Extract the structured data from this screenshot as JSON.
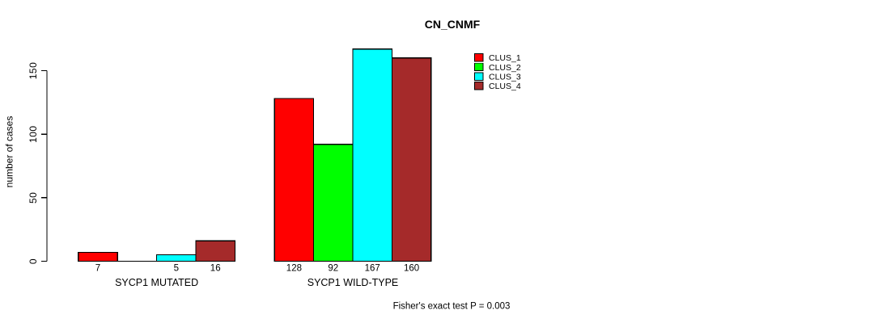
{
  "figure": {
    "title": "CN_CNMF",
    "footer": "Fisher's exact test P = 0.003"
  },
  "chart_data": {
    "type": "bar",
    "title": "CN_CNMF",
    "xlabel": "",
    "ylabel": "number of cases",
    "ylim": [
      0,
      175
    ],
    "yticks": [
      0,
      50,
      100,
      150
    ],
    "ytick_labels": [
      "0",
      "50",
      "100",
      "150"
    ],
    "grid": false,
    "legend_position": "top-right",
    "bar_outline_color": "#000000",
    "categories": [
      "SYCP1 MUTATED",
      "SYCP1 WILD-TYPE"
    ],
    "series": [
      {
        "name": "CLUS_1",
        "color": "#ff0000",
        "values": [
          7,
          128
        ],
        "labels": [
          "7",
          "128"
        ]
      },
      {
        "name": "CLUS_2",
        "color": "#00ff00",
        "values": [
          0,
          92
        ],
        "labels": [
          "",
          "92"
        ]
      },
      {
        "name": "CLUS_3",
        "color": "#00ffff",
        "values": [
          5,
          167
        ],
        "labels": [
          "5",
          "167"
        ]
      },
      {
        "name": "CLUS_4",
        "color": "#a52a2a",
        "values": [
          16,
          160
        ],
        "labels": [
          "16",
          "160"
        ]
      }
    ],
    "annotation": "Fisher's exact test P = 0.003"
  }
}
